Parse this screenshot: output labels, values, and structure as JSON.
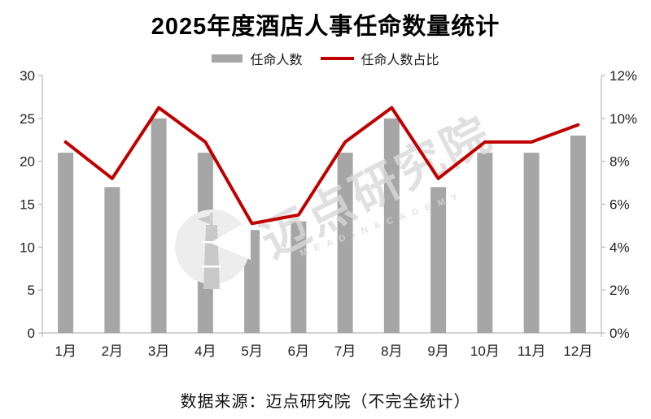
{
  "title": "2025年度酒店人事任命数量统计",
  "legend": {
    "bar_label": "任命人数",
    "line_label": "任命人数占比"
  },
  "source_note": "数据来源：迈点研究院（不完全统计）",
  "watermark": {
    "cjk_text": "迈点研究院",
    "latin_text": "M E A D I N   A C A D E M Y",
    "logo": "meadin-tower-in-circle"
  },
  "colors": {
    "bar": "#a6a6a6",
    "line": "#c00000",
    "axis": "#b9b9b9",
    "label": "#1f1f1f",
    "watermark": "#d9d9d9"
  },
  "chart_data": {
    "type": "bar+line",
    "title": "2025年度酒店人事任命数量统计",
    "categories": [
      "1月",
      "2月",
      "3月",
      "4月",
      "5月",
      "6月",
      "7月",
      "8月",
      "9月",
      "10月",
      "11月",
      "12月"
    ],
    "series": [
      {
        "name": "任命人数",
        "type": "bar",
        "axis": "left",
        "color": "#a6a6a6",
        "values": [
          21,
          17,
          25,
          21,
          12,
          13,
          21,
          25,
          17,
          21,
          21,
          23
        ]
      },
      {
        "name": "任命人数占比",
        "type": "line",
        "axis": "right",
        "color": "#c00000",
        "unit": "%",
        "values": [
          8.9,
          7.2,
          10.5,
          8.9,
          5.1,
          5.5,
          8.9,
          10.5,
          7.2,
          8.9,
          8.9,
          9.7
        ]
      }
    ],
    "left_axis": {
      "min": 0,
      "max": 30,
      "step": 5,
      "tick_labels": [
        "0",
        "5",
        "10",
        "15",
        "20",
        "25",
        "30"
      ]
    },
    "right_axis": {
      "min": 0,
      "max": 12,
      "step": 2,
      "tick_labels": [
        "0%",
        "2%",
        "4%",
        "6%",
        "8%",
        "10%",
        "12%"
      ]
    },
    "grid": false,
    "legend_position": "top"
  }
}
